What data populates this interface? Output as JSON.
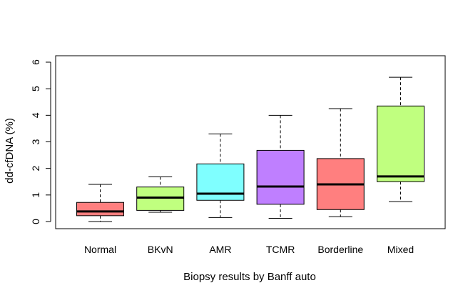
{
  "chart_data": {
    "type": "box",
    "xlabel": "Biopsy results by Banff auto",
    "ylabel": "dd-cfDNA (%)",
    "ylim": [
      0,
      6
    ],
    "yticks": [
      "0",
      "1",
      "2",
      "3",
      "4",
      "5",
      "6"
    ],
    "categories": [
      "Normal",
      "BKvN",
      "AMR",
      "TCMR",
      "Borderline",
      "Mixed"
    ],
    "boxes": [
      {
        "name": "Normal",
        "min": 0.0,
        "q1": 0.22,
        "median": 0.38,
        "q3": 0.72,
        "max": 1.4,
        "color": "#FF7F7F"
      },
      {
        "name": "BKvN",
        "min": 0.35,
        "q1": 0.42,
        "median": 0.9,
        "q3": 1.3,
        "max": 1.68,
        "color": "#C0FF7F"
      },
      {
        "name": "AMR",
        "min": 0.15,
        "q1": 0.8,
        "median": 1.05,
        "q3": 2.17,
        "max": 3.3,
        "color": "#7FFFFF"
      },
      {
        "name": "TCMR",
        "min": 0.12,
        "q1": 0.65,
        "median": 1.32,
        "q3": 2.68,
        "max": 4.0,
        "color": "#BF7FFF"
      },
      {
        "name": "Borderline",
        "min": 0.18,
        "q1": 0.45,
        "median": 1.4,
        "q3": 2.37,
        "max": 4.25,
        "color": "#FF7F7F"
      },
      {
        "name": "Mixed",
        "min": 0.75,
        "q1": 1.5,
        "median": 1.7,
        "q3": 4.35,
        "max": 5.43,
        "color": "#C0FF7F"
      }
    ],
    "grid": false,
    "legend": "none"
  }
}
